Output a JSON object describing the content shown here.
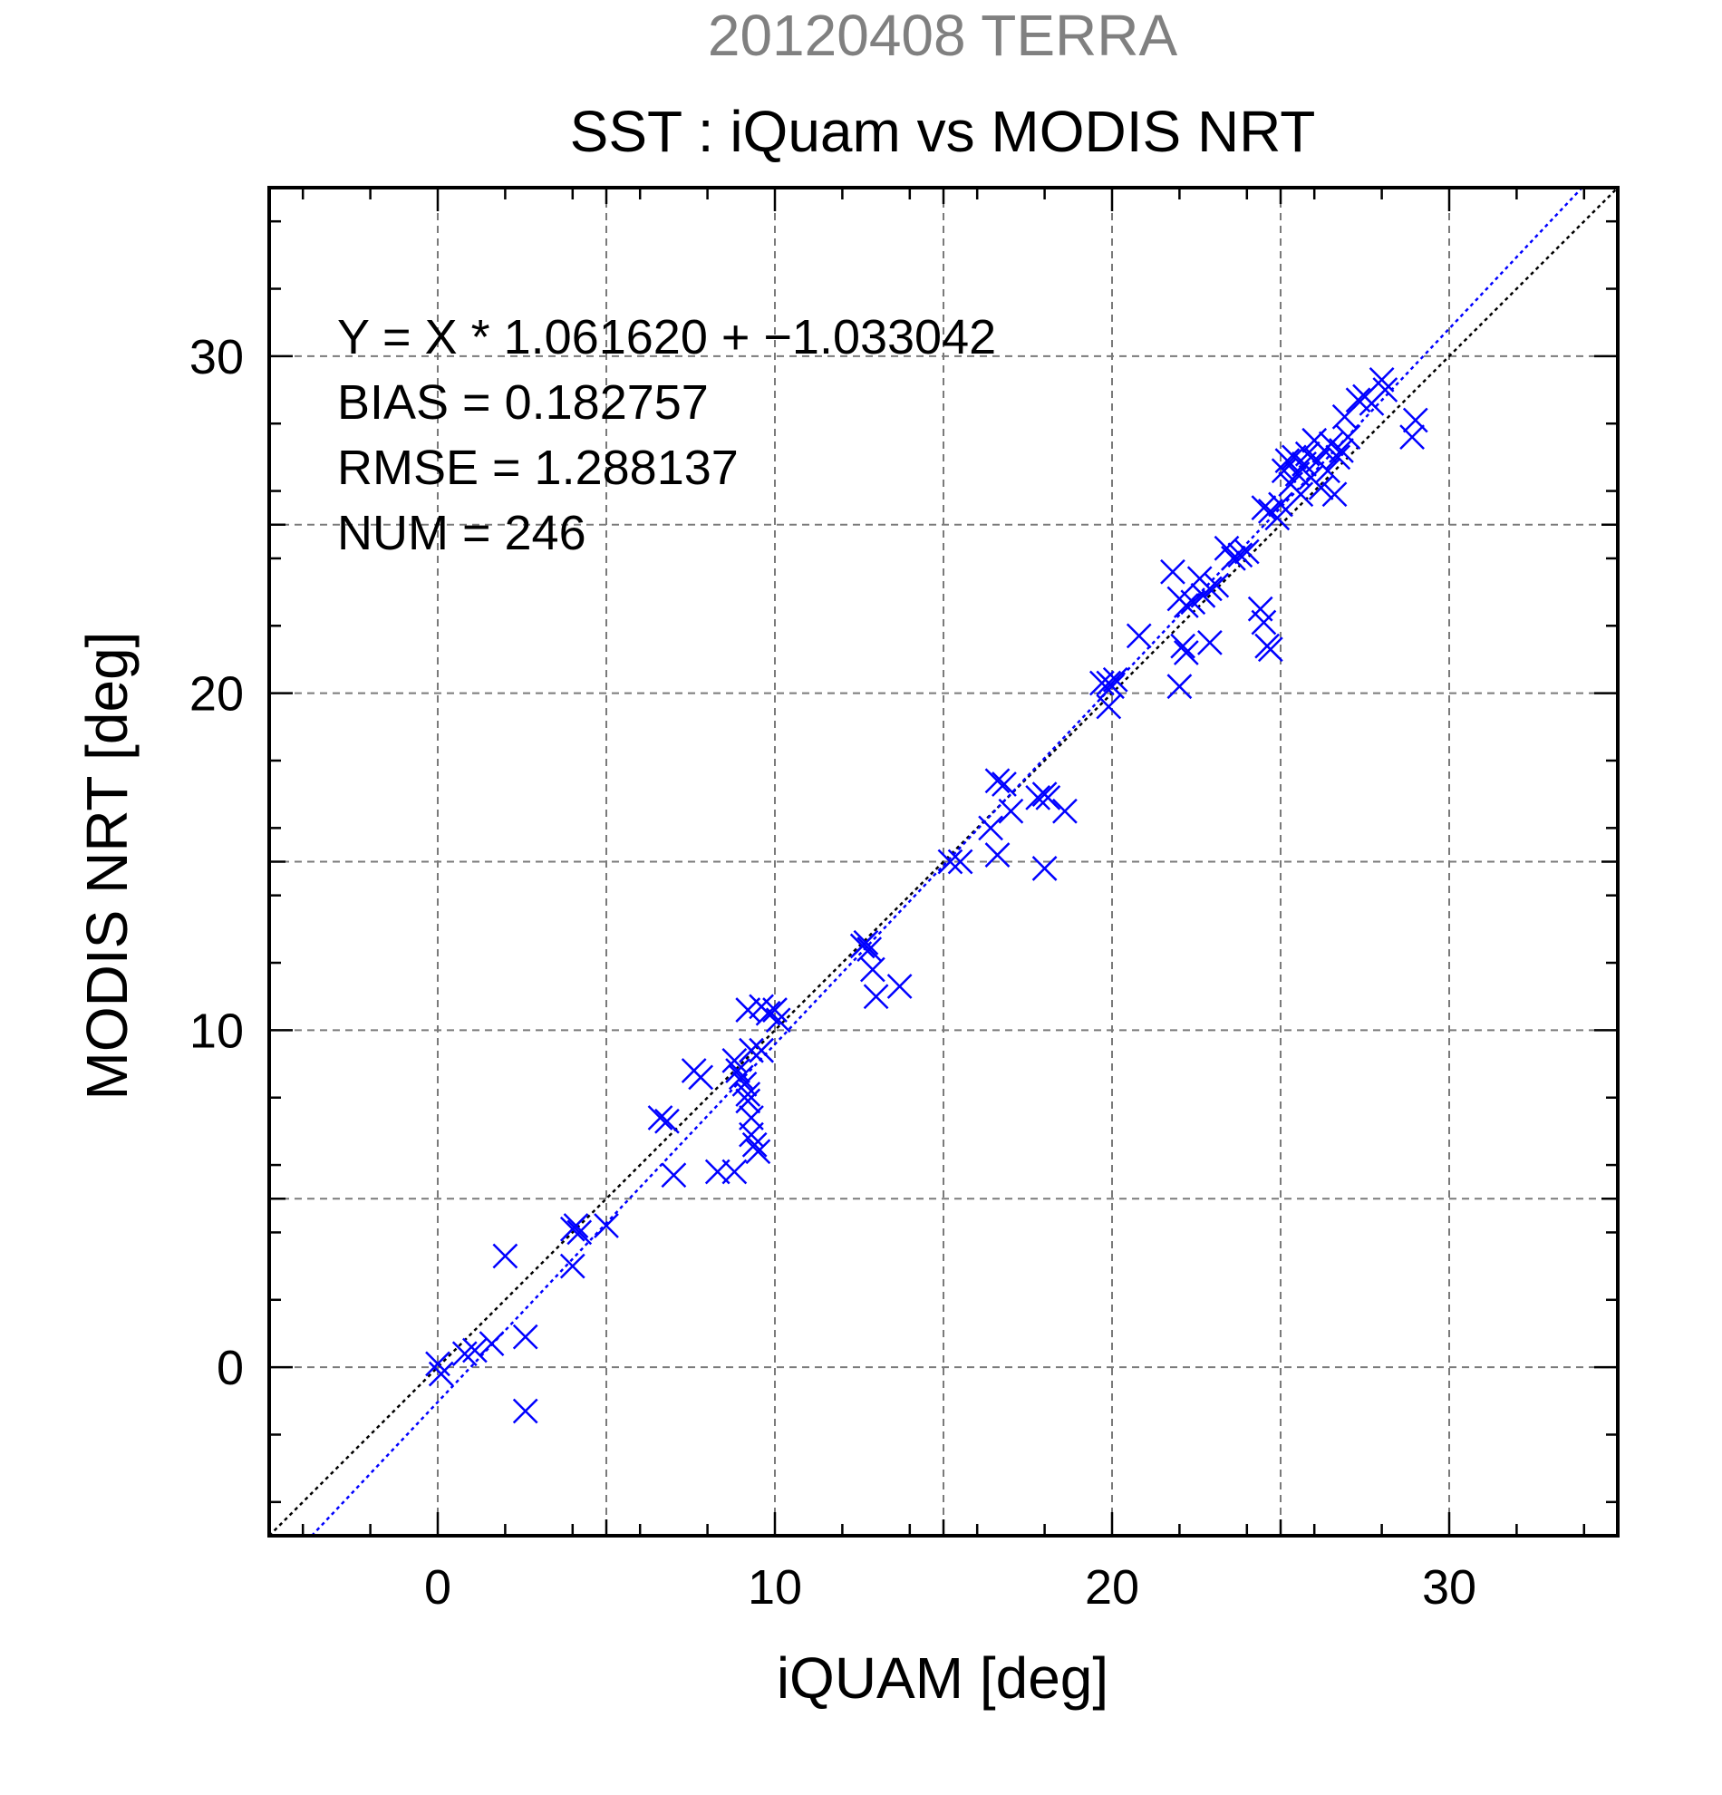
{
  "chart_data": {
    "type": "scatter",
    "supertitle": "20120408 TERRA",
    "title": "SST : iQuam vs MODIS NRT",
    "xlabel": "iQUAM [deg]",
    "ylabel": "MODIS NRT [deg]",
    "xlim": [
      -5,
      35
    ],
    "ylim": [
      -5,
      35
    ],
    "xticks": [
      0,
      10,
      20,
      30
    ],
    "yticks": [
      0,
      10,
      20,
      30
    ],
    "x_tick_labels": [
      "0",
      "10",
      "20",
      "30"
    ],
    "y_tick_labels": [
      "0",
      "10",
      "20",
      "30"
    ],
    "grid": true,
    "stats": [
      "Y = X * 1.061620 + −1.033042",
      "BIAS = 0.182757",
      "RMSE = 1.288137",
      "NUM = 246"
    ],
    "lines": [
      {
        "style": "dotted",
        "color": "#000000",
        "slope": 1.0,
        "intercept": 0.0
      },
      {
        "style": "dotted",
        "color": "#0000ff",
        "slope": 1.06162,
        "intercept": -1.033042
      }
    ],
    "series": [
      {
        "marker": "x",
        "color": "#0000ff",
        "points": [
          [
            0.0,
            0.1
          ],
          [
            0.1,
            -0.2
          ],
          [
            0.8,
            0.4
          ],
          [
            1.1,
            0.5
          ],
          [
            1.6,
            0.7
          ],
          [
            2.0,
            3.3
          ],
          [
            2.6,
            0.9
          ],
          [
            2.6,
            -1.3
          ],
          [
            4.0,
            4.1
          ],
          [
            4.1,
            4.2
          ],
          [
            4.2,
            4.0
          ],
          [
            4.0,
            3.0
          ],
          [
            5.0,
            4.2
          ],
          [
            6.6,
            7.4
          ],
          [
            6.8,
            7.3
          ],
          [
            7.0,
            5.7
          ],
          [
            7.6,
            8.8
          ],
          [
            7.8,
            8.6
          ],
          [
            8.3,
            5.8
          ],
          [
            8.8,
            5.8
          ],
          [
            8.8,
            9.1
          ],
          [
            8.9,
            8.8
          ],
          [
            9.0,
            8.6
          ],
          [
            9.1,
            8.4
          ],
          [
            9.2,
            8.1
          ],
          [
            9.2,
            7.9
          ],
          [
            9.3,
            9.4
          ],
          [
            9.3,
            7.4
          ],
          [
            9.3,
            6.9
          ],
          [
            9.4,
            6.6
          ],
          [
            9.5,
            6.4
          ],
          [
            9.2,
            10.6
          ],
          [
            9.6,
            10.7
          ],
          [
            9.8,
            10.5
          ],
          [
            10.0,
            10.6
          ],
          [
            10.1,
            10.3
          ],
          [
            9.6,
            9.4
          ],
          [
            12.6,
            12.5
          ],
          [
            12.7,
            12.6
          ],
          [
            12.8,
            12.4
          ],
          [
            12.9,
            11.8
          ],
          [
            13.0,
            11.0
          ],
          [
            13.7,
            11.3
          ],
          [
            15.2,
            15.0
          ],
          [
            15.5,
            15.0
          ],
          [
            16.4,
            16.0
          ],
          [
            16.6,
            15.2
          ],
          [
            16.6,
            17.4
          ],
          [
            16.8,
            17.3
          ],
          [
            17.0,
            16.5
          ],
          [
            17.8,
            16.9
          ],
          [
            18.0,
            17.0
          ],
          [
            18.1,
            16.9
          ],
          [
            18.0,
            14.8
          ],
          [
            18.6,
            16.5
          ],
          [
            19.7,
            20.3
          ],
          [
            19.9,
            20.3
          ],
          [
            20.0,
            20.2
          ],
          [
            20.1,
            20.4
          ],
          [
            19.9,
            19.6
          ],
          [
            20.8,
            21.7
          ],
          [
            21.8,
            23.6
          ],
          [
            22.0,
            22.8
          ],
          [
            22.0,
            20.2
          ],
          [
            22.1,
            21.4
          ],
          [
            22.2,
            21.2
          ],
          [
            22.2,
            22.6
          ],
          [
            22.4,
            22.7
          ],
          [
            22.6,
            23.4
          ],
          [
            22.7,
            22.9
          ],
          [
            22.9,
            23.1
          ],
          [
            22.9,
            21.5
          ],
          [
            23.1,
            23.2
          ],
          [
            23.4,
            24.3
          ],
          [
            23.6,
            24.0
          ],
          [
            23.8,
            24.1
          ],
          [
            24.0,
            24.2
          ],
          [
            24.4,
            22.5
          ],
          [
            24.5,
            22.1
          ],
          [
            24.6,
            21.4
          ],
          [
            24.7,
            21.3
          ],
          [
            24.5,
            25.5
          ],
          [
            24.7,
            25.4
          ],
          [
            24.9,
            25.2
          ],
          [
            25.0,
            25.6
          ],
          [
            25.1,
            26.6
          ],
          [
            25.2,
            26.9
          ],
          [
            25.3,
            26.2
          ],
          [
            25.4,
            27.0
          ],
          [
            25.5,
            26.5
          ],
          [
            25.6,
            25.9
          ],
          [
            25.7,
            26.8
          ],
          [
            25.8,
            27.1
          ],
          [
            25.9,
            26.4
          ],
          [
            26.0,
            27.5
          ],
          [
            26.1,
            26.9
          ],
          [
            26.2,
            26.1
          ],
          [
            26.3,
            27.2
          ],
          [
            26.4,
            26.6
          ],
          [
            26.5,
            27.4
          ],
          [
            26.6,
            25.9
          ],
          [
            26.7,
            27.0
          ],
          [
            26.8,
            27.2
          ],
          [
            26.9,
            28.2
          ],
          [
            27.0,
            27.6
          ],
          [
            27.3,
            28.7
          ],
          [
            27.5,
            28.8
          ],
          [
            27.7,
            28.6
          ],
          [
            28.0,
            29.3
          ],
          [
            28.1,
            29.0
          ],
          [
            28.9,
            27.6
          ],
          [
            29.0,
            28.1
          ]
        ]
      }
    ]
  }
}
